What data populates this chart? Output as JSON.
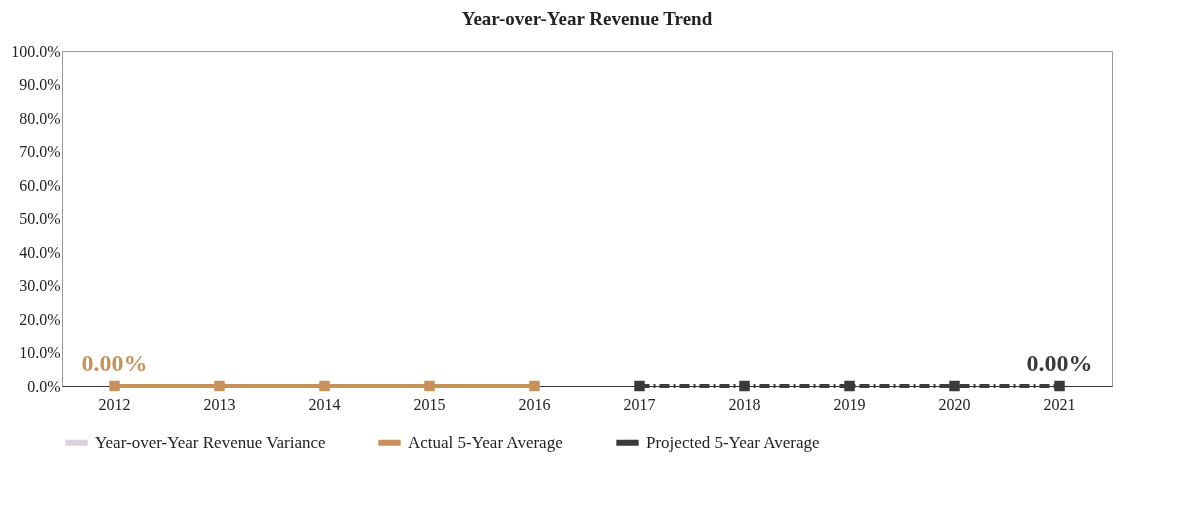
{
  "chart_data": {
    "type": "line",
    "title": "Year-over-Year Revenue Trend",
    "categories": [
      "2012",
      "2013",
      "2014",
      "2015",
      "2016",
      "2017",
      "2018",
      "2019",
      "2020",
      "2021"
    ],
    "series": [
      {
        "name": "Year-over-Year Revenue Variance",
        "type": "bar",
        "color": "#d9d2de",
        "values": [
          0,
          0,
          0,
          0,
          0,
          0,
          0,
          0,
          0,
          0
        ]
      },
      {
        "name": "Actual 5-Year Average",
        "color": "#c8915a",
        "marker": "square",
        "line_style": "solid",
        "values": [
          0,
          0,
          0,
          0,
          0,
          null,
          null,
          null,
          null,
          null
        ]
      },
      {
        "name": "Projected 5-Year Average",
        "color": "#3a3a3a",
        "marker": "square",
        "line_style": "dashed",
        "values": [
          null,
          null,
          null,
          null,
          null,
          0,
          0,
          0,
          0,
          0
        ]
      }
    ],
    "ylim": [
      0,
      100
    ],
    "yticks": [
      {
        "value": 0,
        "label": "0.0%"
      },
      {
        "value": 10,
        "label": "10.0%"
      },
      {
        "value": 20,
        "label": "20.0%"
      },
      {
        "value": 30,
        "label": "30.0%"
      },
      {
        "value": 40,
        "label": "40.0%"
      },
      {
        "value": 50,
        "label": "50.0%"
      },
      {
        "value": 60,
        "label": "60.0%"
      },
      {
        "value": 70,
        "label": "70.0%"
      },
      {
        "value": 80,
        "label": "80.0%"
      },
      {
        "value": 90,
        "label": "90.0%"
      },
      {
        "value": 100,
        "label": "100.0%"
      }
    ],
    "grid": false,
    "legend": "bottom",
    "annotations": [
      {
        "text": "0.00%",
        "x": "2012",
        "y": 0
      },
      {
        "text": "0.00%",
        "x": "2021",
        "y": 0
      }
    ]
  }
}
